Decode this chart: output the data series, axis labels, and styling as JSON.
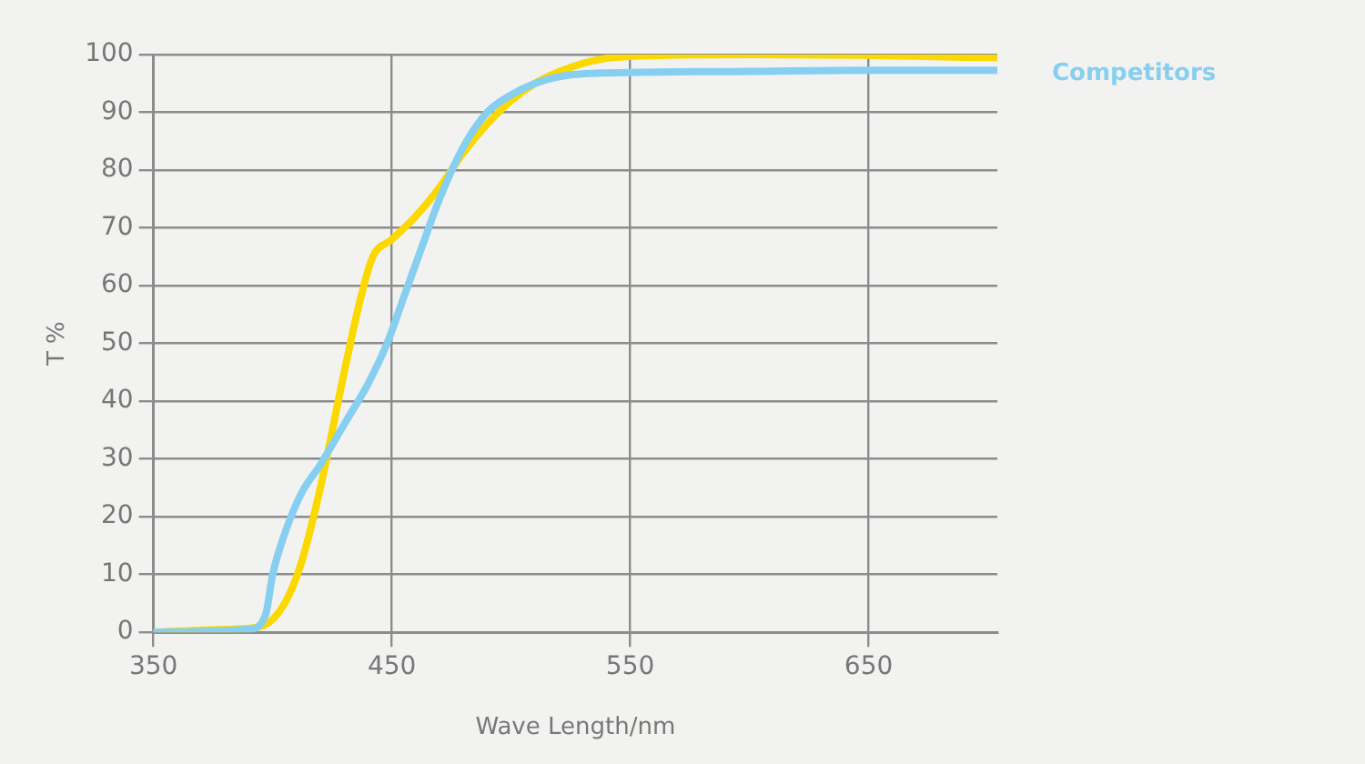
{
  "chart_data": {
    "type": "line",
    "xlabel": "Wave Length/nm",
    "ylabel": "T %",
    "xlim": [
      350,
      704
    ],
    "xticks": [
      350,
      450,
      550,
      650
    ],
    "ylim": [
      0,
      100
    ],
    "yticks": [
      0,
      10,
      20,
      30,
      40,
      50,
      60,
      70,
      80,
      90,
      100
    ],
    "grid": true,
    "legend": "top right",
    "marker": "none",
    "line_style": "solid",
    "series": [
      {
        "color": "#fbd800",
        "x": [
          350,
          380,
          395,
          405,
          412,
          420,
          430,
          437,
          442,
          450,
          460,
          470,
          480,
          490,
          500,
          510,
          520,
          535,
          550,
          600,
          650,
          700,
          704
        ],
        "values": [
          0,
          0.5,
          1,
          5,
          12,
          25,
          45,
          58,
          65,
          68,
          72,
          77,
          83,
          88,
          92,
          95,
          97,
          99,
          99.7,
          100,
          99.9,
          99.5,
          99.5
        ]
      },
      {
        "name": "Competitors",
        "color": "#86cff0",
        "x": [
          350,
          390,
          397,
          400,
          405,
          412,
          420,
          430,
          440,
          448,
          455,
          462,
          470,
          480,
          490,
          500,
          510,
          525,
          550,
          600,
          650,
          704
        ],
        "values": [
          0,
          0.5,
          3,
          10,
          17,
          24,
          29,
          36,
          43,
          50,
          58,
          66,
          75,
          84,
          90,
          93,
          95,
          96.5,
          96.9,
          97.1,
          97.3,
          97.3
        ]
      }
    ]
  }
}
